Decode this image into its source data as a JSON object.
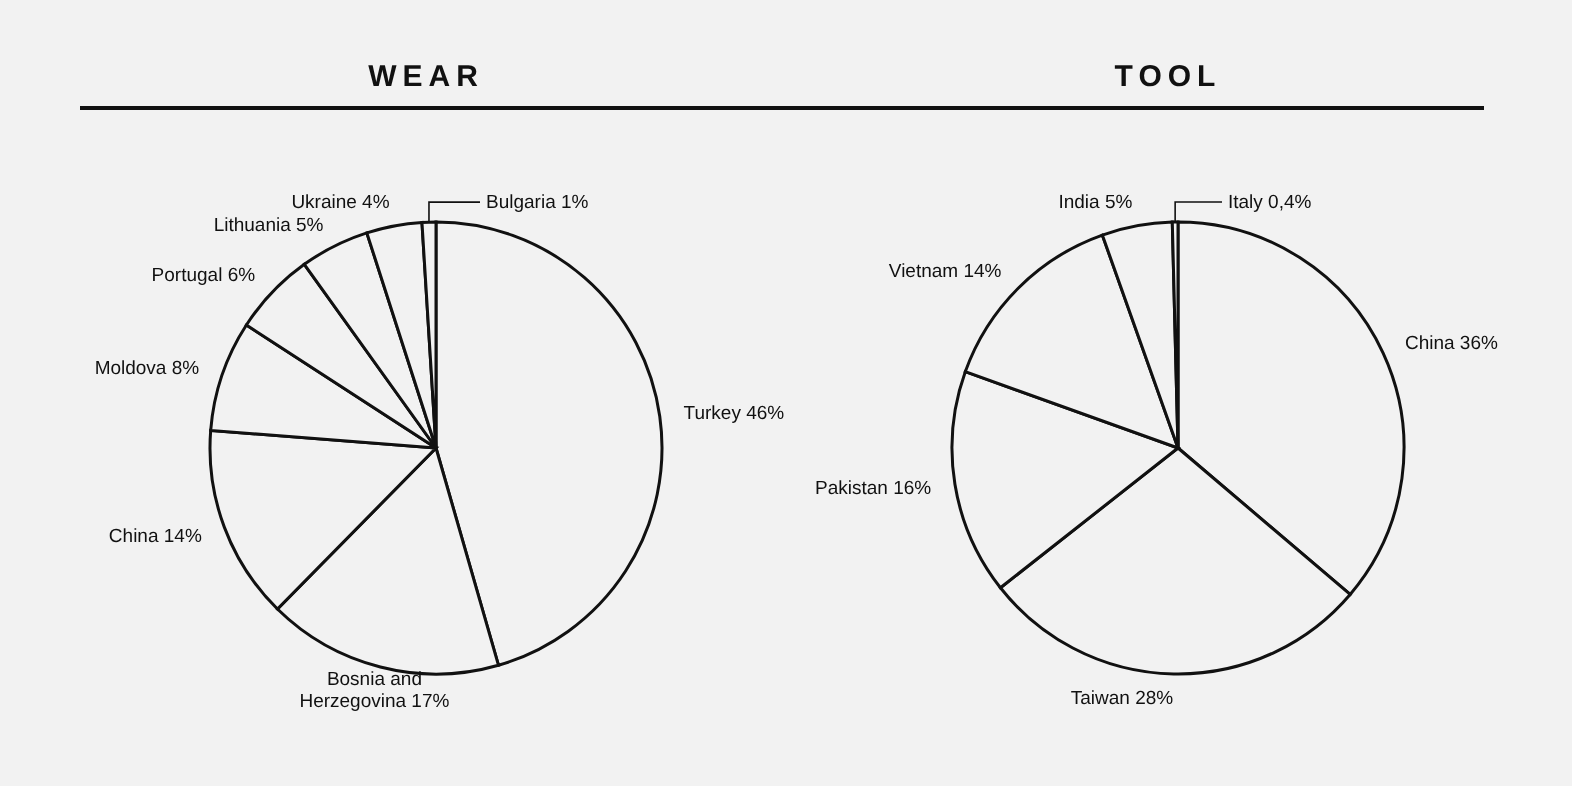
{
  "chart_data": [
    {
      "type": "pie",
      "title": "WEAR",
      "categories": [
        "Turkey",
        "Bosnia and Herzegovina",
        "China",
        "Moldova",
        "Portugal",
        "Lithuania",
        "Ukraine",
        "Bulgaria"
      ],
      "values": [
        46,
        17,
        14,
        8,
        6,
        5,
        4,
        1
      ],
      "value_labels": [
        "46%",
        "17%",
        "14%",
        "8%",
        "6%",
        "5%",
        "4%",
        "1%"
      ],
      "colors": [
        "#f2f2f2",
        "#f2f2f2",
        "#f2f2f2",
        "#f2f2f2",
        "#f2f2f2",
        "#f2f2f2",
        "#f2f2f2",
        "#f2f2f2"
      ]
    },
    {
      "type": "pie",
      "title": "TOOL",
      "categories": [
        "China",
        "Taiwan",
        "Pakistan",
        "Vietnam",
        "India",
        "Italy"
      ],
      "values": [
        36,
        28,
        16,
        14,
        5,
        0.4
      ],
      "value_labels": [
        "36%",
        "28%",
        "16%",
        "14%",
        "5%",
        "0,4%"
      ],
      "colors": [
        "#f2f2f2",
        "#f2f2f2",
        "#f2f2f2",
        "#f2f2f2",
        "#f2f2f2",
        "#f2f2f2"
      ]
    }
  ]
}
